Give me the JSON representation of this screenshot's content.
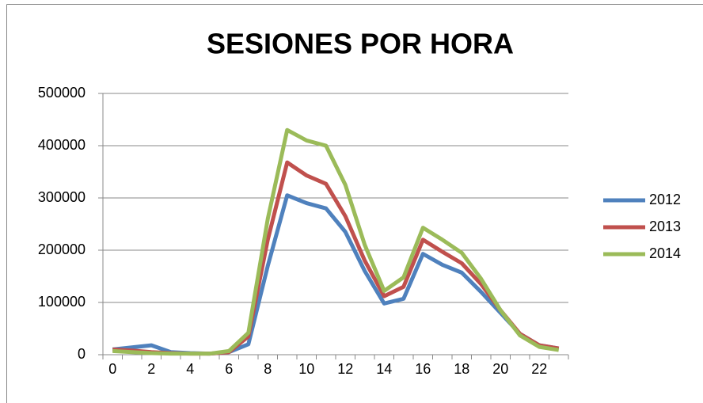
{
  "chart_data": {
    "type": "line",
    "title": "SESIONES POR HORA",
    "categories": [
      0,
      null,
      2,
      null,
      4,
      null,
      6,
      null,
      8,
      null,
      10,
      null,
      12,
      null,
      14,
      null,
      16,
      null,
      18,
      null,
      20,
      null,
      22,
      null
    ],
    "series": [
      {
        "name": "2012",
        "color": "#4f81bd",
        "values": [
          10000,
          14000,
          18000,
          5000,
          3000,
          2000,
          5000,
          20000,
          170000,
          305000,
          290000,
          280000,
          235000,
          160000,
          98000,
          107000,
          193000,
          172000,
          157000,
          120000,
          80000,
          40000,
          18000,
          12000
        ]
      },
      {
        "name": "2013",
        "color": "#c0504d",
        "values": [
          10000,
          8000,
          5000,
          3000,
          2000,
          2000,
          5000,
          35000,
          220000,
          368000,
          343000,
          327000,
          265000,
          180000,
          112000,
          130000,
          220000,
          197000,
          175000,
          135000,
          85000,
          40000,
          18000,
          12000
        ]
      },
      {
        "name": "2014",
        "color": "#9bbb59",
        "values": [
          7000,
          5000,
          3000,
          2000,
          2000,
          2000,
          7000,
          42000,
          260000,
          430000,
          410000,
          400000,
          325000,
          210000,
          122000,
          148000,
          243000,
          220000,
          195000,
          145000,
          85000,
          37000,
          15000,
          9000
        ]
      }
    ],
    "ylim": [
      0,
      500000
    ],
    "yticks": [
      0,
      100000,
      200000,
      300000,
      400000,
      500000
    ],
    "grid": true,
    "legend": "right"
  }
}
